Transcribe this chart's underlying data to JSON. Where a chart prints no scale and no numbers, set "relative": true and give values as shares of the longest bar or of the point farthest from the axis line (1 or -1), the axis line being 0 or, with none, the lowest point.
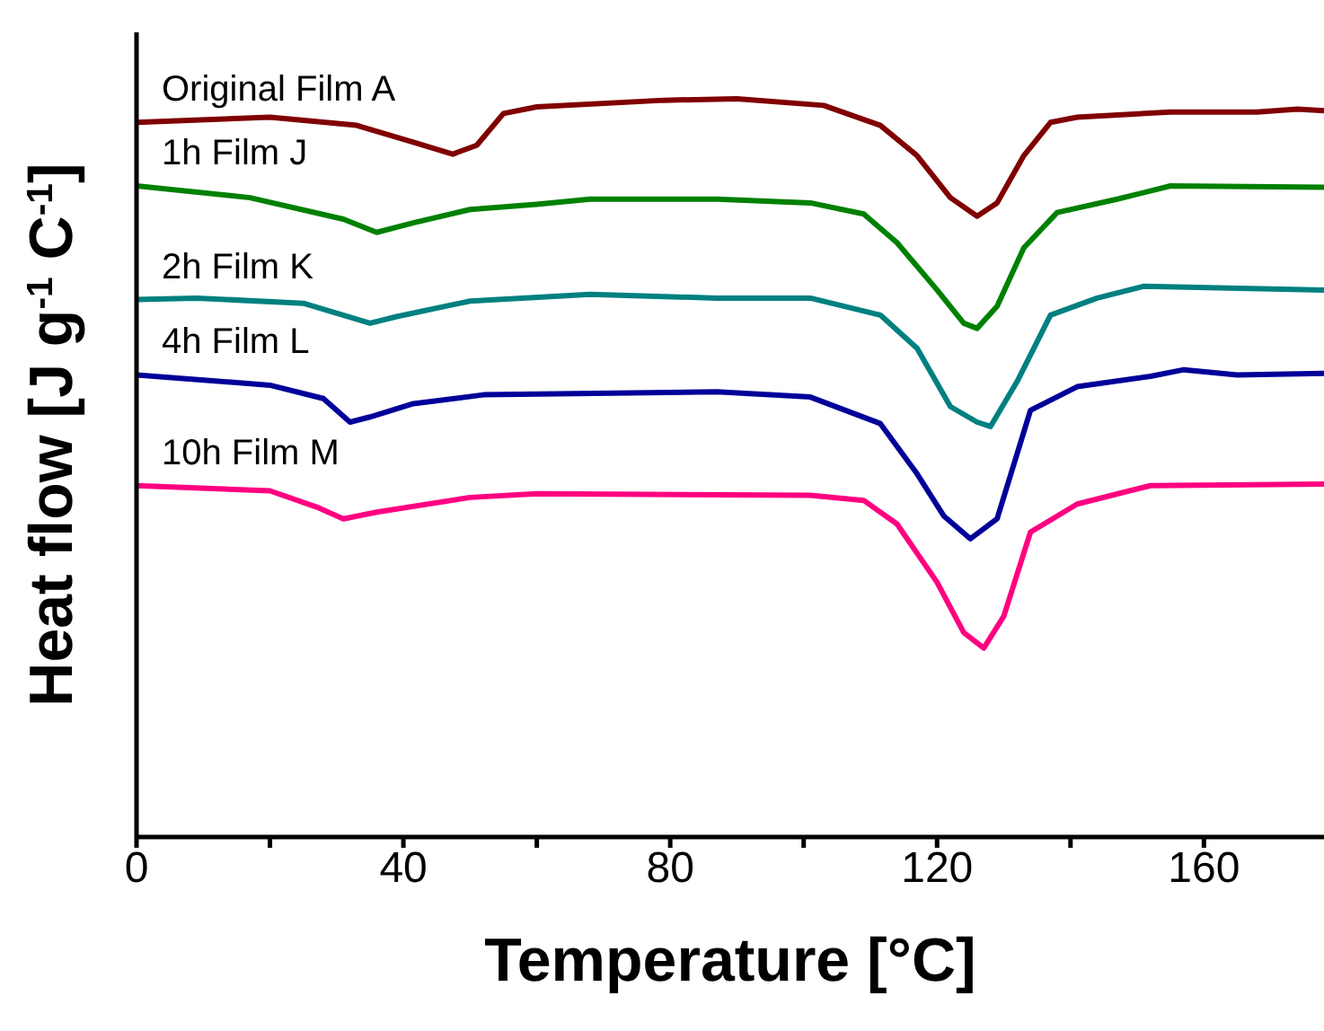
{
  "chart_data": {
    "type": "line",
    "xlabel": "Temperature [°C]",
    "ylabel": "Heat flow [J g$^{-1}$ C$^{-1}$]",
    "relative": true,
    "xlim": [
      0,
      178
    ],
    "xticks": [
      0,
      {
        "value": 20,
        "label": null
      },
      40,
      {
        "value": 60,
        "label": null
      },
      80,
      {
        "value": 100,
        "label": null
      },
      120,
      {
        "value": 140,
        "label": null
      },
      160
    ],
    "grid": false,
    "legend": false,
    "marker": "none",
    "line_style": "solid",
    "series": [
      {
        "name": "Original Film A",
        "color": "#800000",
        "x": [
          0,
          20,
          33,
          41.5,
          47.4,
          51,
          55,
          60,
          79,
          90,
          103,
          111.5,
          117,
          122,
          126,
          129,
          133,
          137,
          141,
          155,
          168,
          174,
          178
        ],
        "values": [
          0.968,
          0.975,
          0.964,
          0.941,
          0.925,
          0.937,
          0.98,
          0.989,
          0.998,
          1.0,
          0.991,
          0.964,
          0.923,
          0.866,
          0.841,
          0.859,
          0.923,
          0.968,
          0.975,
          0.982,
          0.982,
          0.986,
          0.984
        ]
      },
      {
        "name": "1h Film J",
        "color": "#008000",
        "x": [
          0,
          17,
          31,
          36,
          41.5,
          50,
          60,
          68,
          87,
          101,
          109,
          114,
          120,
          124,
          126,
          129,
          133,
          138,
          147,
          155,
          178
        ],
        "values": [
          0.882,
          0.866,
          0.837,
          0.819,
          0.832,
          0.85,
          0.857,
          0.864,
          0.864,
          0.859,
          0.844,
          0.805,
          0.741,
          0.696,
          0.689,
          0.719,
          0.798,
          0.846,
          0.864,
          0.882,
          0.88
        ]
      },
      {
        "name": "2h Film K",
        "color": "#008080",
        "x": [
          0,
          9,
          25,
          35,
          39,
          50,
          68,
          87,
          101,
          111.5,
          117,
          122,
          126,
          128,
          132,
          137,
          144,
          151,
          178
        ],
        "values": [
          0.728,
          0.73,
          0.723,
          0.696,
          0.705,
          0.726,
          0.735,
          0.73,
          0.73,
          0.707,
          0.662,
          0.583,
          0.562,
          0.556,
          0.617,
          0.707,
          0.73,
          0.746,
          0.741
        ]
      },
      {
        "name": "4h Film L",
        "color": "#000099",
        "x": [
          0,
          20,
          28,
          32,
          35,
          41.5,
          52,
          87,
          101,
          111.5,
          117,
          121,
          125,
          129,
          134,
          141,
          152,
          157,
          165,
          178
        ],
        "values": [
          0.626,
          0.612,
          0.594,
          0.562,
          0.569,
          0.587,
          0.599,
          0.603,
          0.596,
          0.56,
          0.492,
          0.435,
          0.404,
          0.431,
          0.578,
          0.61,
          0.624,
          0.633,
          0.626,
          0.628
        ]
      },
      {
        "name": "10h Film M",
        "color": "#ff0080",
        "x": [
          0,
          20,
          27,
          31,
          36,
          50,
          60,
          101,
          109,
          114,
          120,
          124,
          127,
          130,
          134,
          141,
          152,
          178
        ],
        "values": [
          0.476,
          0.469,
          0.447,
          0.431,
          0.44,
          0.46,
          0.465,
          0.463,
          0.456,
          0.424,
          0.345,
          0.277,
          0.256,
          0.299,
          0.413,
          0.451,
          0.476,
          0.478
        ]
      }
    ]
  }
}
